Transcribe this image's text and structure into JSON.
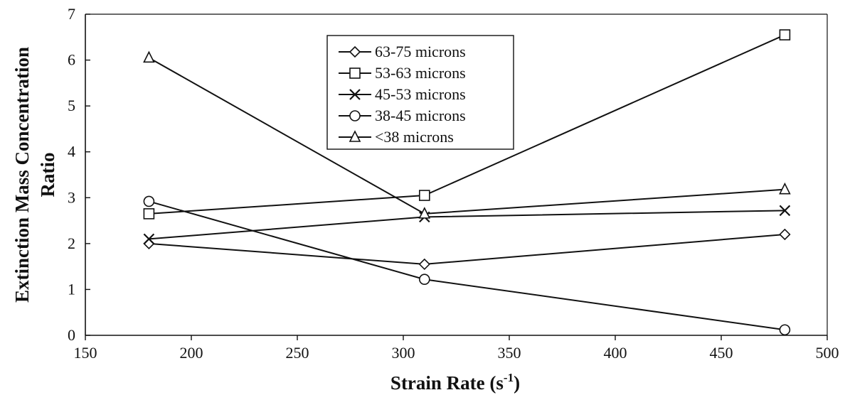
{
  "chart_data": {
    "type": "line",
    "title": "",
    "xlabel": "Strain Rate (s",
    "xlabel_sup": "-1",
    "xlabel_close": ")",
    "ylabel_line1": "Extinction Mass Concentration",
    "ylabel_line2": "Ratio",
    "xlim": [
      150,
      500
    ],
    "ylim": [
      0,
      7
    ],
    "xticks": [
      150,
      200,
      250,
      300,
      350,
      400,
      450,
      500
    ],
    "yticks": [
      0,
      1,
      2,
      3,
      4,
      5,
      6,
      7
    ],
    "grid": false,
    "legend_position": "top-center",
    "x": [
      180,
      310,
      480
    ],
    "series": [
      {
        "name": "63-75 microns",
        "marker": "diamond",
        "values": [
          2.0,
          1.55,
          2.2
        ]
      },
      {
        "name": "53-63 microns",
        "marker": "square",
        "values": [
          2.65,
          3.05,
          6.55
        ]
      },
      {
        "name": "45-53 microns",
        "marker": "x",
        "values": [
          2.1,
          2.58,
          2.72
        ]
      },
      {
        "name": "38-45 microns",
        "marker": "circle",
        "values": [
          2.92,
          1.22,
          0.12
        ]
      },
      {
        "name": "<38 microns",
        "marker": "triangle",
        "values": [
          6.05,
          2.65,
          3.18
        ]
      }
    ]
  }
}
